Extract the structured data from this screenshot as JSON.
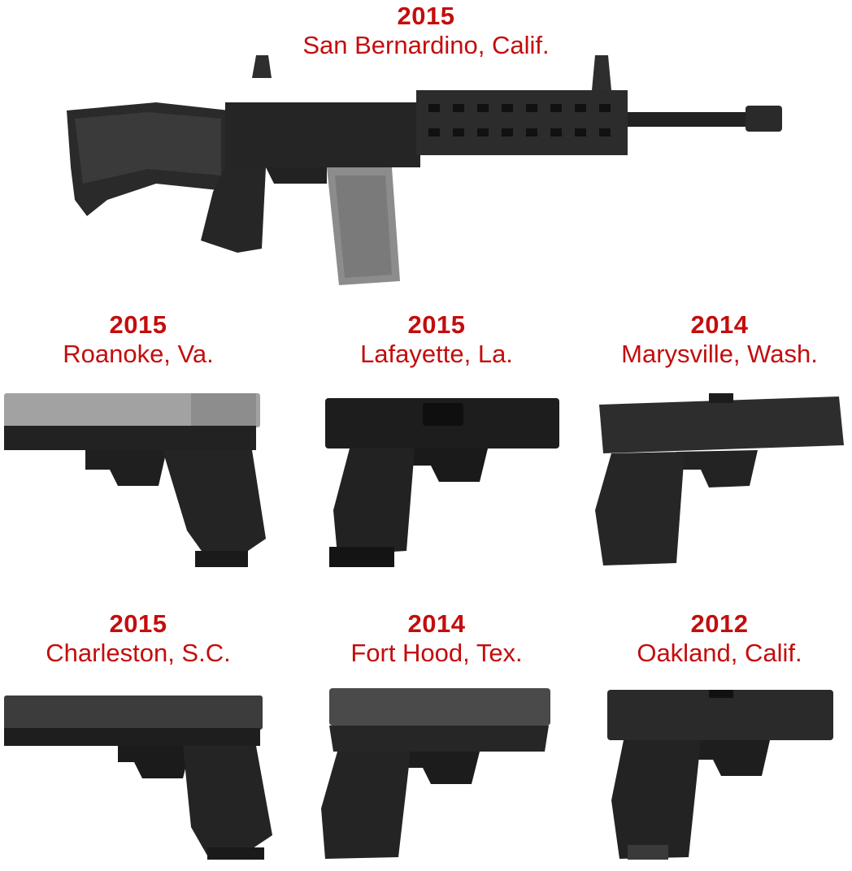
{
  "items": [
    {
      "year": "2015",
      "place": "San Bernardino, Calif.",
      "weapon_icon": "rifle-icon"
    },
    {
      "year": "2015",
      "place": "Roanoke, Va.",
      "weapon_icon": "pistol-icon"
    },
    {
      "year": "2015",
      "place": "Lafayette, La.",
      "weapon_icon": "pistol-icon"
    },
    {
      "year": "2014",
      "place": "Marysville, Wash.",
      "weapon_icon": "pistol-icon"
    },
    {
      "year": "2015",
      "place": "Charleston, S.C.",
      "weapon_icon": "pistol-icon"
    },
    {
      "year": "2014",
      "place": "Fort Hood, Tex.",
      "weapon_icon": "pistol-icon"
    },
    {
      "year": "2012",
      "place": "Oakland, Calif.",
      "weapon_icon": "pistol-icon"
    }
  ],
  "colors": {
    "caption_red": "#c40d0d",
    "gun_dark": "#1e1e1e",
    "gun_slide_gray": "#9a9a9a"
  }
}
